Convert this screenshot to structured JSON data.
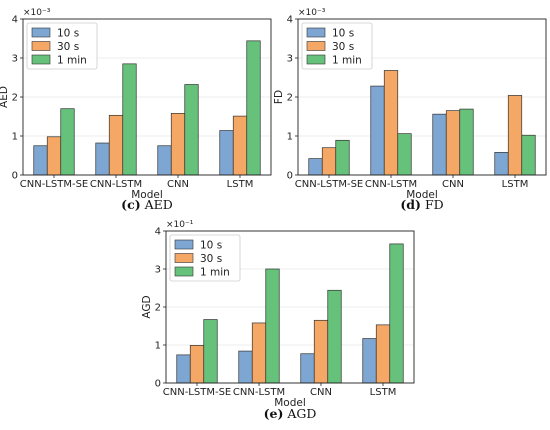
{
  "chart_data": [
    {
      "type": "bar",
      "caption_letter": "(c)",
      "caption_text": "AED",
      "ylabel": "AED",
      "xlabel": "Model",
      "scale_label": "×10⁻³",
      "ylim": [
        0,
        4
      ],
      "yticks": [
        "0",
        "1",
        "2",
        "3",
        "4"
      ],
      "categories": [
        "CNN-LSTM-SE",
        "CNN-LSTM",
        "CNN",
        "LSTM"
      ],
      "series": [
        {
          "name": "10 s",
          "color": "#7ea6d2",
          "values": [
            0.75,
            0.82,
            0.75,
            1.14
          ]
        },
        {
          "name": "30 s",
          "color": "#f5a866",
          "values": [
            0.98,
            1.53,
            1.58,
            1.51
          ]
        },
        {
          "name": "1 min",
          "color": "#66c17a",
          "values": [
            1.7,
            2.85,
            2.32,
            3.44
          ]
        }
      ],
      "legend_position": "top-left",
      "grid": true
    },
    {
      "type": "bar",
      "caption_letter": "(d)",
      "caption_text": "FD",
      "ylabel": "FD",
      "xlabel": "Model",
      "scale_label": "×10⁻³",
      "ylim": [
        0,
        4
      ],
      "yticks": [
        "0",
        "1",
        "2",
        "3",
        "4"
      ],
      "categories": [
        "CNN-LSTM-SE",
        "CNN-LSTM",
        "CNN",
        "LSTM"
      ],
      "series": [
        {
          "name": "10 s",
          "color": "#7ea6d2",
          "values": [
            0.42,
            2.28,
            1.56,
            0.58
          ]
        },
        {
          "name": "30 s",
          "color": "#f5a866",
          "values": [
            0.7,
            2.68,
            1.65,
            2.04
          ]
        },
        {
          "name": "1 min",
          "color": "#66c17a",
          "values": [
            0.89,
            1.06,
            1.69,
            1.02
          ]
        }
      ],
      "legend_position": "top-left",
      "grid": true
    },
    {
      "type": "bar",
      "caption_letter": "(e)",
      "caption_text": "AGD",
      "ylabel": "AGD",
      "xlabel": "Model",
      "scale_label": "×10⁻¹",
      "ylim": [
        0,
        4
      ],
      "yticks": [
        "0",
        "1",
        "2",
        "3",
        "4"
      ],
      "categories": [
        "CNN-LSTM-SE",
        "CNN-LSTM",
        "CNN",
        "LSTM"
      ],
      "series": [
        {
          "name": "10 s",
          "color": "#7ea6d2",
          "values": [
            0.74,
            0.84,
            0.77,
            1.17
          ]
        },
        {
          "name": "30 s",
          "color": "#f5a866",
          "values": [
            0.99,
            1.58,
            1.65,
            1.53
          ]
        },
        {
          "name": "1 min",
          "color": "#66c17a",
          "values": [
            1.67,
            3.0,
            2.44,
            3.66
          ]
        }
      ],
      "legend_position": "top-left",
      "grid": true
    }
  ]
}
